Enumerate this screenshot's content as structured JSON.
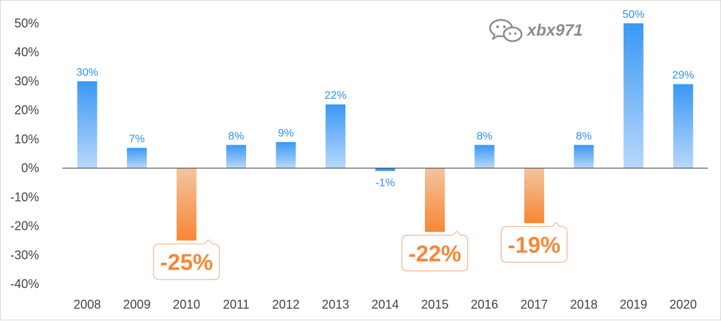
{
  "watermark": {
    "text": "xbx971",
    "icon": "wechat-icon"
  },
  "colors": {
    "positive_top": "#3a98f5",
    "positive_bottom": "#b8d8fb",
    "negative_top": "#f3c4a1",
    "negative_bottom": "#f98633",
    "label_positive": "#2f8ff0",
    "label_negative": "#f58736",
    "axis": "#333333"
  },
  "chart_data": {
    "type": "bar",
    "categories": [
      "2008",
      "2009",
      "2010",
      "2011",
      "2012",
      "2013",
      "2014",
      "2015",
      "2016",
      "2017",
      "2018",
      "2019",
      "2020"
    ],
    "values": [
      30,
      7,
      -25,
      8,
      9,
      22,
      -1,
      -22,
      8,
      -19,
      8,
      50,
      29
    ],
    "data_labels": [
      "30%",
      "7%",
      "-25%",
      "8%",
      "9%",
      "22%",
      "-1%",
      "-22%",
      "8%",
      "-19%",
      "8%",
      "50%",
      "29%"
    ],
    "y_ticks": [
      "50%",
      "40%",
      "30%",
      "20%",
      "10%",
      "0%",
      "-10%",
      "-20%",
      "-30%",
      "-40%"
    ],
    "ylim": [
      -40,
      50
    ],
    "grid": false,
    "title": "",
    "xlabel": "",
    "ylabel": ""
  }
}
